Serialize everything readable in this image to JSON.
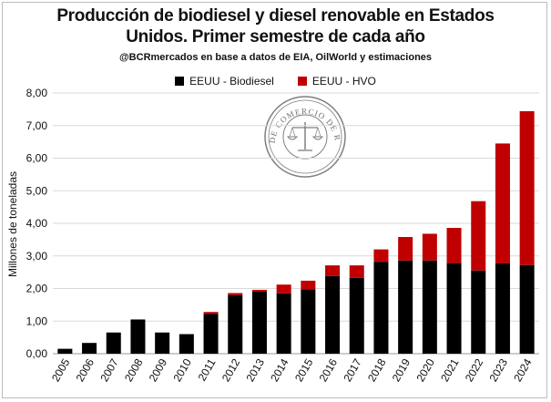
{
  "chart_data": {
    "type": "bar",
    "stacked": true,
    "title": "Producción de biodiesel y diesel renovable en Estados Unidos. Primer semestre de cada año",
    "subtitle": "@BCRmercados en base a datos de EIA, OilWorld y estimaciones",
    "xlabel": "",
    "ylabel": "Millones de toneladas",
    "ylim": [
      0,
      8
    ],
    "yticks": [
      "0,00",
      "1,00",
      "2,00",
      "3,00",
      "4,00",
      "5,00",
      "6,00",
      "7,00",
      "8,00"
    ],
    "grid": true,
    "legend_position": "top",
    "categories": [
      "2005",
      "2006",
      "2007",
      "2008",
      "2009",
      "2010",
      "2011",
      "2012",
      "2013",
      "2014",
      "2015",
      "2016",
      "2017",
      "2018",
      "2019",
      "2020",
      "2021",
      "2022",
      "2023",
      "2024"
    ],
    "series": [
      {
        "name": "EEUU - Biodiesel",
        "color": "#000000",
        "values": [
          0.15,
          0.33,
          0.65,
          1.05,
          0.65,
          0.6,
          1.22,
          1.8,
          1.9,
          1.85,
          1.97,
          2.38,
          2.33,
          2.82,
          2.86,
          2.86,
          2.78,
          2.55,
          2.77,
          2.72
        ]
      },
      {
        "name": "EEUU - HVO",
        "color": "#c00000",
        "values": [
          0.0,
          0.0,
          0.0,
          0.0,
          0.0,
          0.0,
          0.06,
          0.06,
          0.06,
          0.27,
          0.27,
          0.33,
          0.38,
          0.38,
          0.72,
          0.82,
          1.08,
          2.13,
          3.68,
          4.72
        ]
      }
    ]
  },
  "watermark": {
    "text": "BOLSA DE COMERCIO DE ROSARIO",
    "icon": "scales-of-justice-seal"
  }
}
